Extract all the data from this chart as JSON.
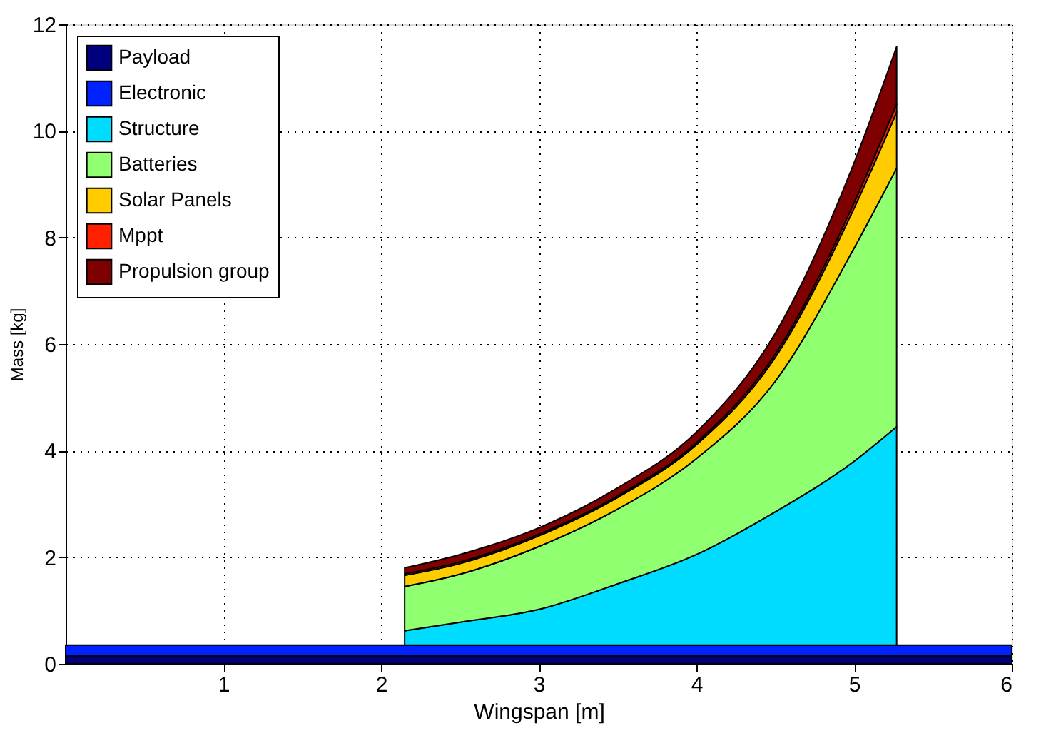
{
  "chart_data": {
    "type": "area",
    "stacked": true,
    "xlabel": "Wingspan [m]",
    "ylabel": "Mass [kg]",
    "x": [
      0,
      2.15,
      2.5,
      3,
      3.5,
      4,
      4.5,
      5,
      5.27,
      6
    ],
    "series": [
      {
        "name": "Payload",
        "color": "#00007f",
        "values": [
          0.15,
          0.15,
          0.15,
          0.15,
          0.15,
          0.15,
          0.15,
          0.15,
          0.15,
          0.15
        ]
      },
      {
        "name": "Electronic",
        "color": "#0022ff",
        "values": [
          0.2,
          0.2,
          0.2,
          0.2,
          0.2,
          0.2,
          0.2,
          0.2,
          0.2,
          0.2
        ]
      },
      {
        "name": "Structure",
        "color": "#00dcff",
        "values": [
          null,
          0.27,
          0.43,
          0.67,
          1.15,
          1.7,
          2.5,
          3.45,
          4.1,
          null
        ]
      },
      {
        "name": "Batteries",
        "color": "#90ff70",
        "values": [
          null,
          0.83,
          0.9,
          1.18,
          1.4,
          1.8,
          2.45,
          4.0,
          4.85,
          null
        ]
      },
      {
        "name": "Solar Panels",
        "color": "#ffcc00",
        "values": [
          null,
          0.21,
          0.2,
          0.2,
          0.22,
          0.26,
          0.45,
          0.75,
          1.05,
          null
        ]
      },
      {
        "name": "Mppt",
        "color": "#ff2000",
        "values": [
          null,
          0.03,
          0.03,
          0.03,
          0.03,
          0.04,
          0.06,
          0.1,
          0.15,
          null
        ]
      },
      {
        "name": "Propulsion group",
        "color": "#7f0000",
        "values": [
          null,
          0.11,
          0.14,
          0.12,
          0.15,
          0.2,
          0.39,
          0.75,
          1.08,
          null
        ]
      }
    ],
    "xlim": [
      0,
      6
    ],
    "xticks": [
      1,
      2,
      3,
      4,
      5,
      6
    ],
    "ylim": [
      0,
      12
    ],
    "yticks": [
      0,
      2,
      4,
      6,
      8,
      10,
      12
    ],
    "grid": true,
    "legend": "top left"
  }
}
